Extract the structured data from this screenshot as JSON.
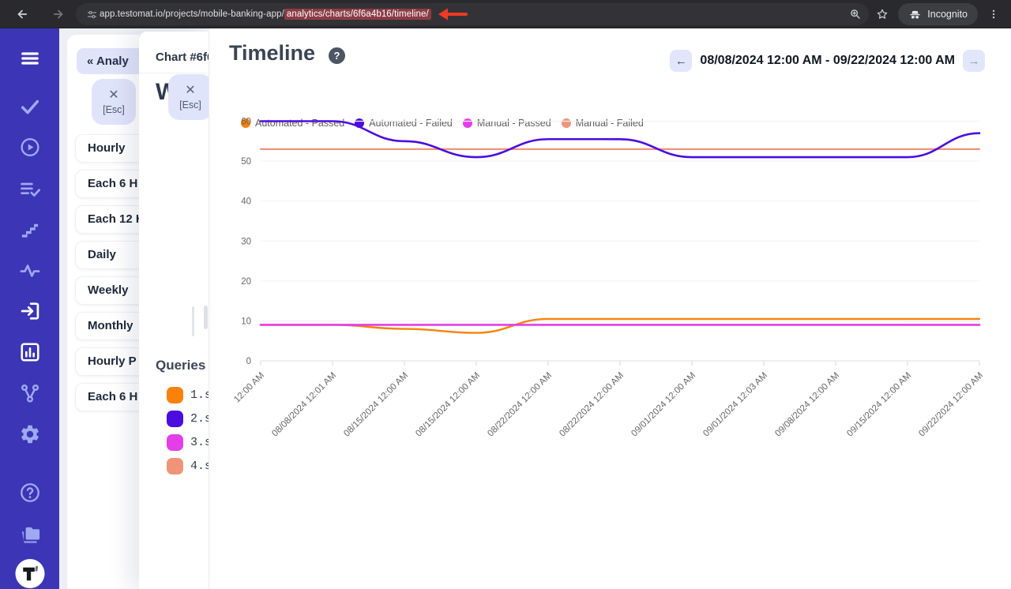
{
  "browser": {
    "back_icon": "back-arrow-icon",
    "forward_icon": "forward-arrow-icon",
    "reload_icon": "reload-icon",
    "site_info_icon": "site-settings-icon",
    "url_prefix": "app.testomat.io/projects/mobile-banking-app/",
    "url_highlight": "analytics/charts/6f6a4b16/timeline/",
    "url_highlight_bg": "#8b3c45",
    "annotation": "red-arrow-left",
    "annotation_color": "#ee3a24",
    "zoom_icon": "zoom-icon",
    "star_icon": "bookmark-star-icon",
    "incognito_label": "Incognito",
    "menu_icon": "kebab-menu-icon"
  },
  "sidebar": {
    "background": "#3c35b5",
    "icons": [
      "menu-icon",
      "check-icon",
      "play-circle-icon",
      "list-check-icon",
      "steps-icon",
      "pulse-icon",
      "sign-in-icon",
      "bar-chart-icon",
      "branch-icon",
      "gear-icon",
      "help-icon",
      "folder-icon",
      "testomat-logo"
    ]
  },
  "panel_intervals": {
    "back_label": "« Analy",
    "esc_x": "✕",
    "esc_label": "[Esc]",
    "items": [
      "Hourly",
      "Each 6 H",
      "Each 12 H",
      "Daily",
      "Weekly",
      "Monthly",
      "Hourly P",
      "Each 6 H"
    ]
  },
  "panel_chart": {
    "title": "Chart #6f6",
    "esc_x": "✕",
    "esc_label": "[Esc]",
    "heading": "W",
    "queries_title": "Queries",
    "queries": [
      {
        "label": "1.s",
        "color": "#f8820c"
      },
      {
        "label": "2.s",
        "color": "#4b0ce0"
      },
      {
        "label": "3.s",
        "color": "#e33ee8"
      },
      {
        "label": "4.s",
        "color": "#ee9579"
      }
    ]
  },
  "main": {
    "title": "Timeline",
    "help_icon": "?",
    "prev_arrow": "←",
    "next_arrow": "→",
    "date_range": "08/08/2024 12:00 AM - 09/22/2024 12:00 AM"
  },
  "chart_data": {
    "type": "line",
    "x": [
      "12:00 AM",
      "08/08/2024 12:01 AM",
      "08/15/2024 12:00 AM",
      "08/15/2024 12:00 AM",
      "08/22/2024 12:00 AM",
      "08/22/2024 12:00 AM",
      "09/01/2024 12:00 AM",
      "09/01/2024 12:03 AM",
      "09/08/2024 12:00 AM",
      "09/15/2024 12:00 AM",
      "09/22/2024 12:00 AM"
    ],
    "series": [
      {
        "name": "Automated - Passed",
        "color": "#f8820c",
        "width": 2.4,
        "values": [
          9,
          9,
          8,
          7,
          10.5,
          10.5,
          10.5,
          10.5,
          10.5,
          10.5,
          10.5
        ]
      },
      {
        "name": "Automated - Failed",
        "color": "#4b0ce0",
        "width": 2.6,
        "values": [
          60,
          60,
          55,
          51,
          55.5,
          55.5,
          51,
          51,
          51,
          51,
          57
        ]
      },
      {
        "name": "Manual - Passed",
        "color": "#e33ee8",
        "width": 2.6,
        "values": [
          9,
          9,
          9,
          9,
          9,
          9,
          9,
          9,
          9,
          9,
          9
        ]
      },
      {
        "name": "Manual - Failed",
        "color": "#ee9579",
        "width": 2.2,
        "values": [
          53,
          53,
          53,
          53,
          53,
          53,
          53,
          53,
          53,
          53,
          53
        ]
      }
    ],
    "draw_order": [
      3,
      0,
      2,
      1
    ],
    "ylim": [
      0,
      60
    ],
    "yticks": [
      0,
      10,
      20,
      30,
      40,
      50,
      60
    ],
    "legend_position": "top",
    "grid": "horizontal",
    "x_label_rotation": -45
  }
}
